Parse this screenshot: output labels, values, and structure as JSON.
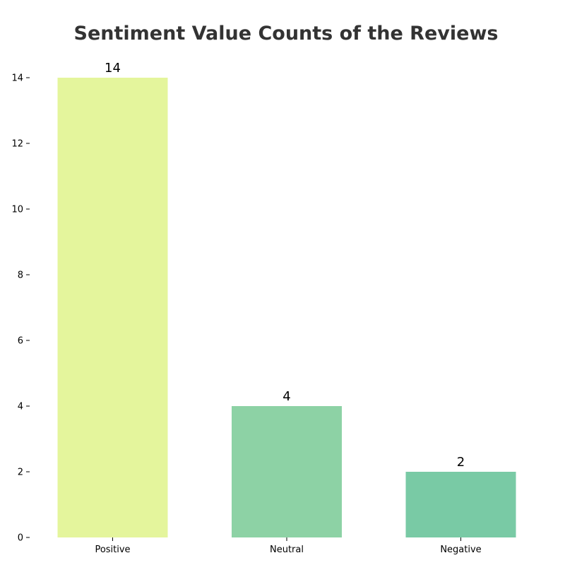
{
  "chart_data": {
    "type": "bar",
    "title": "Sentiment Value Counts of the Reviews",
    "xlabel": "",
    "ylabel": "",
    "categories": [
      "Positive",
      "Neutral",
      "Negative"
    ],
    "values": [
      14,
      4,
      2
    ],
    "value_labels": [
      "14",
      "4",
      "2"
    ],
    "colors": [
      "#e4f59c",
      "#8dd2a5",
      "#79caa5"
    ],
    "ylim": [
      0,
      14
    ],
    "yticks": [
      0,
      2,
      4,
      6,
      8,
      10,
      12,
      14
    ],
    "ytick_labels": [
      "0",
      "2",
      "4",
      "6",
      "8",
      "10",
      "12",
      "14"
    ],
    "grid": false,
    "legend": "none"
  }
}
